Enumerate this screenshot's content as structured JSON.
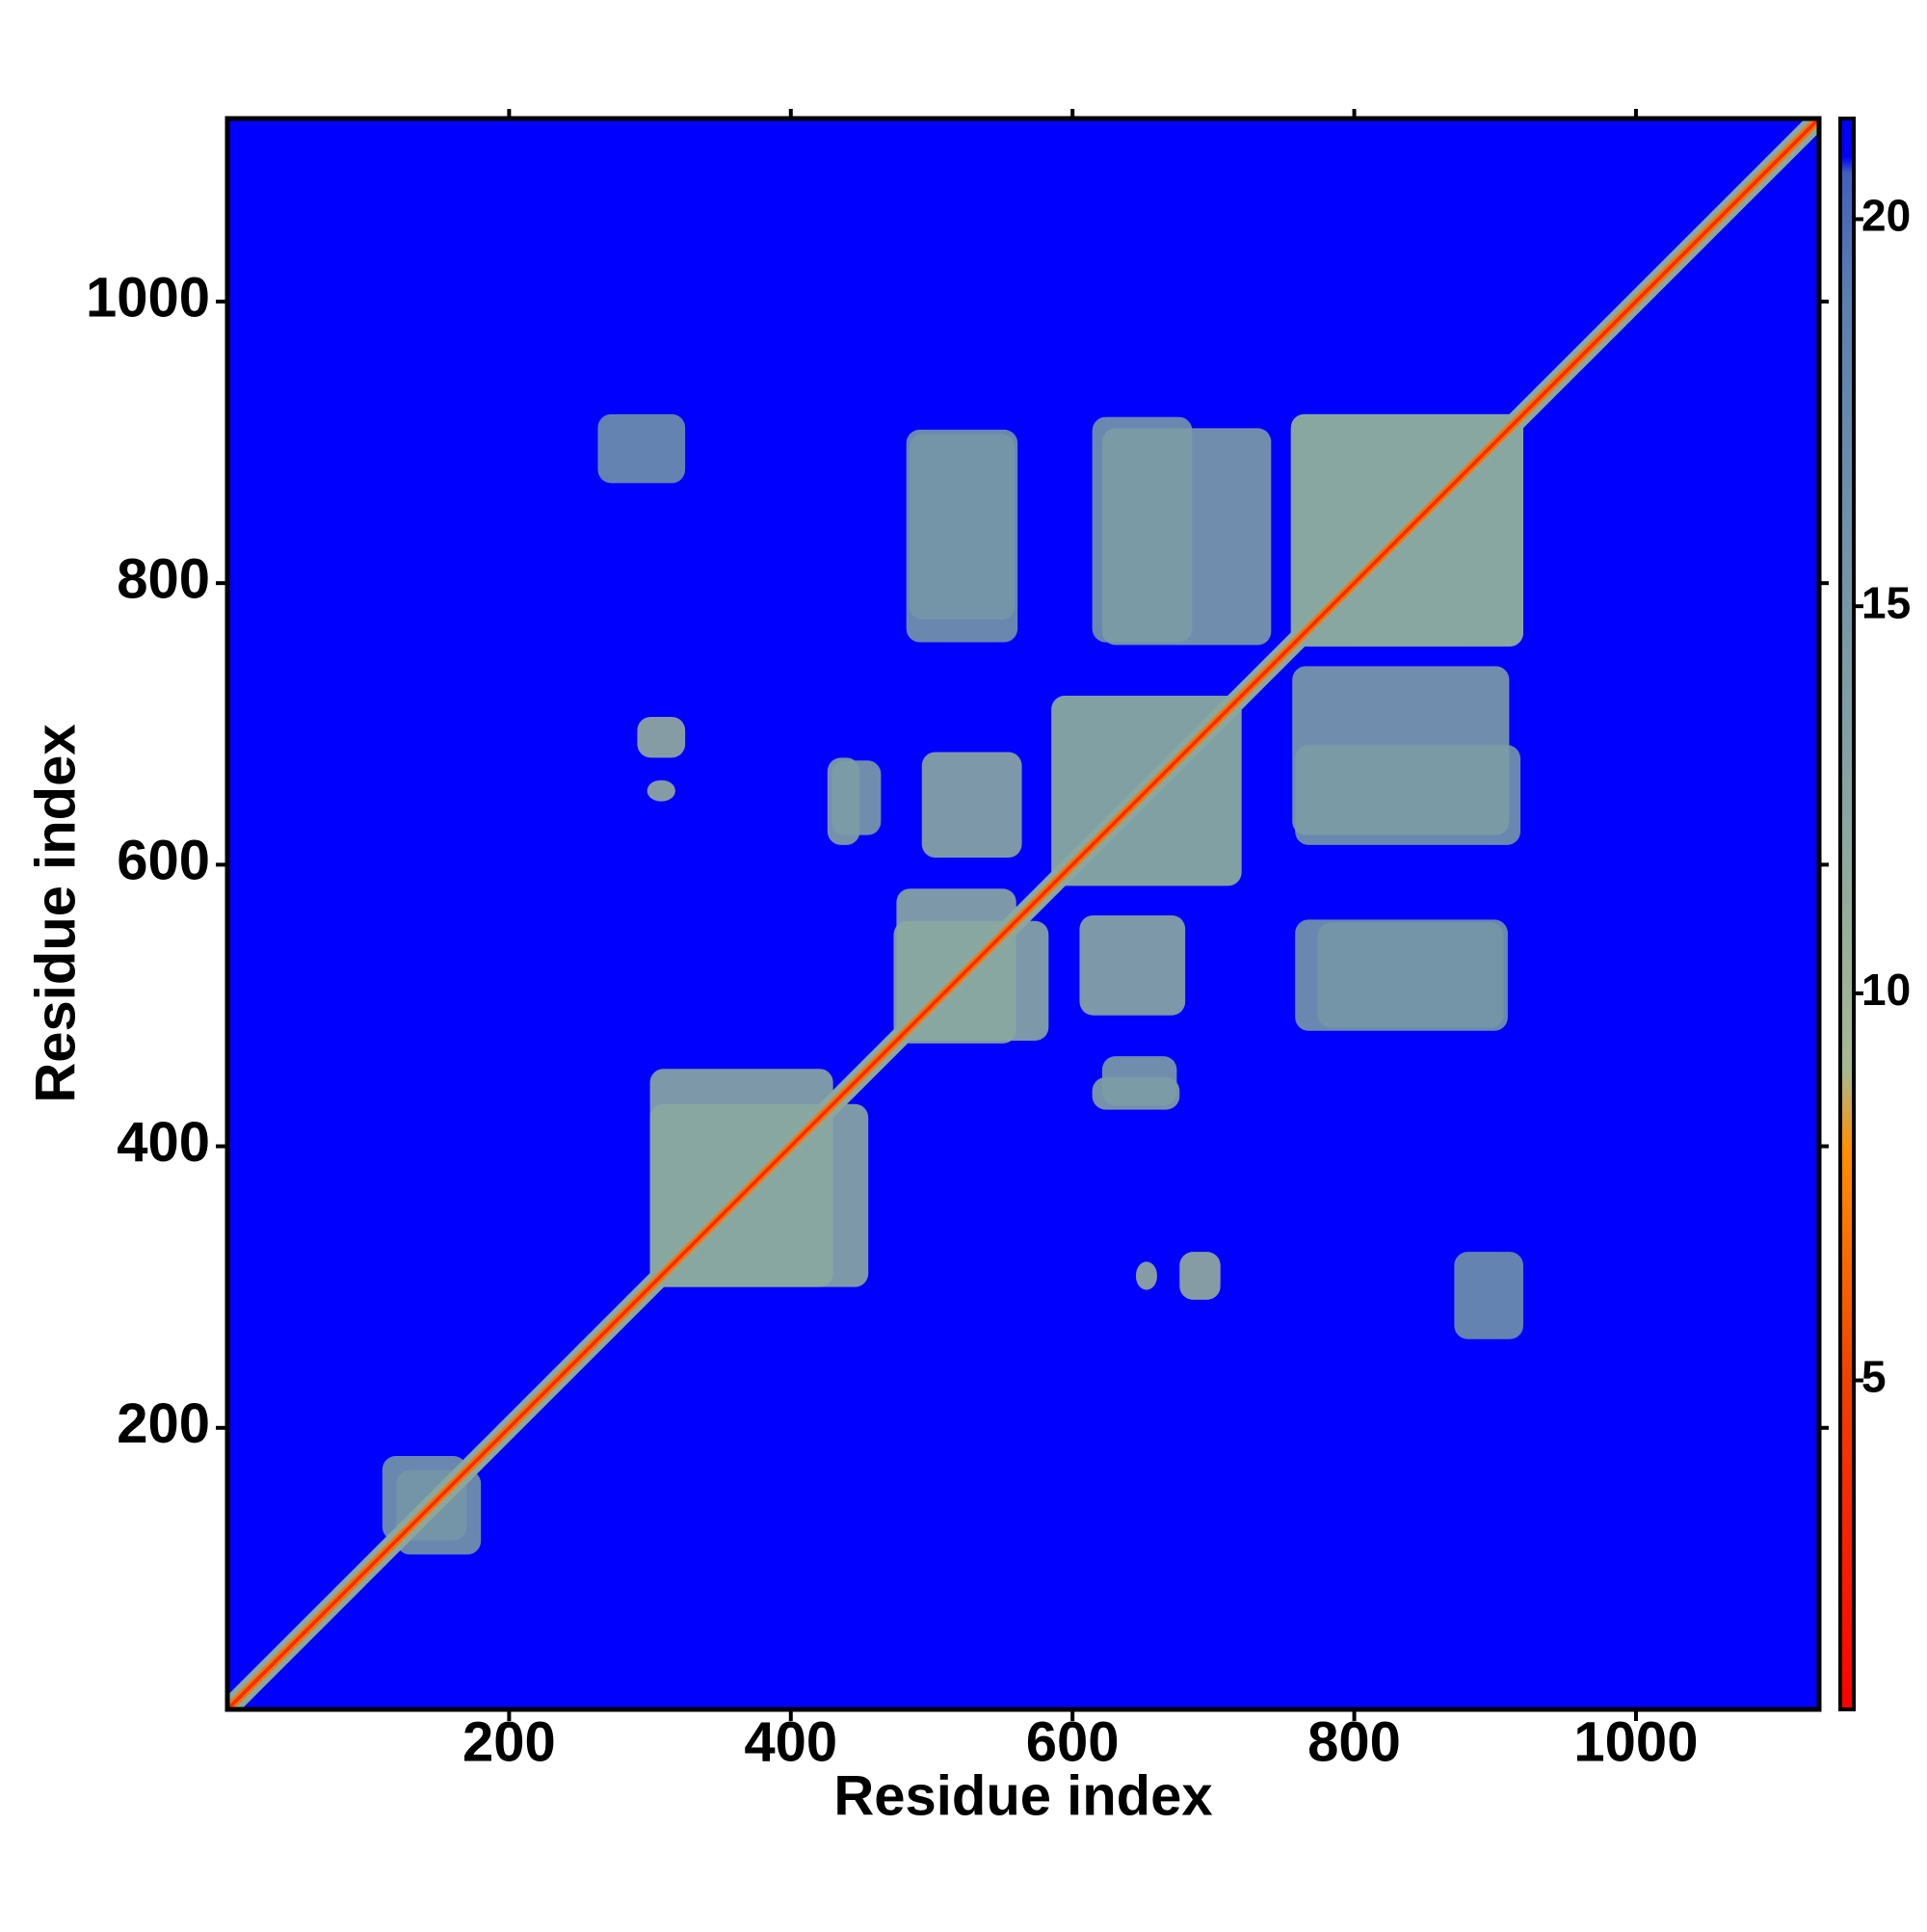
{
  "chart_data": {
    "type": "heatmap",
    "x_label": "Residue index",
    "y_label": "Residue index",
    "xlim": [
      0,
      1130
    ],
    "ylim": [
      0,
      1130
    ],
    "xticks": [
      200,
      400,
      600,
      800,
      1000
    ],
    "yticks": [
      200,
      400,
      600,
      800,
      1000
    ],
    "symmetric": true,
    "background_value": 21,
    "zlim": [
      0.75,
      21.3
    ],
    "zticks": [
      5,
      10,
      15,
      20
    ],
    "colorscale": [
      {
        "value": 0.75,
        "color": "#ff0000"
      },
      {
        "value": 5,
        "color": "#f04000"
      },
      {
        "value": 8,
        "color": "#ff9000"
      },
      {
        "value": 9,
        "color": "#a8b890"
      },
      {
        "value": 12,
        "color": "#8aa8a0"
      },
      {
        "value": 19,
        "color": "#5a7fb0"
      },
      {
        "value": 20.6,
        "color": "#4060c0"
      },
      {
        "value": 20.8,
        "color": "#0000ff"
      }
    ],
    "diagonal": [
      {
        "value": 12,
        "width": 14
      },
      {
        "value": 7,
        "width": 6
      },
      {
        "value": 3.8,
        "width": 2.5
      }
    ],
    "regions": [
      {
        "x": [
          475,
          560
        ],
        "y": [
          473,
          583
        ],
        "value": 12
      },
      {
        "x": [
          493,
          564
        ],
        "y": [
          605,
          680
        ],
        "value": 12
      },
      {
        "x": [
          755,
          920
        ],
        "y": [
          755,
          920
        ],
        "value": 12
      },
      {
        "x": [
          300,
          430
        ],
        "y": [
          300,
          455
        ],
        "value": 12
      },
      {
        "x": [
          291,
          325
        ],
        "y": [
          676,
          705
        ],
        "value": 11
      },
      {
        "x": [
          298,
          318
        ],
        "y": [
          645,
          660
        ],
        "value": 11
      },
      {
        "x": [
          758,
          909
        ],
        "y": [
          482,
          561
        ],
        "value": 15
      },
      {
        "x": [
          758,
          918
        ],
        "y": [
          614,
          685
        ],
        "value": 15
      },
      {
        "x": [
          484,
          559
        ],
        "y": [
          774,
          906
        ],
        "value": 15
      },
      {
        "x": [
          621,
          741
        ],
        "y": [
          756,
          910
        ],
        "value": 14
      },
      {
        "x": [
          426,
          449
        ],
        "y": [
          614,
          676
        ],
        "value": 13
      },
      {
        "x": [
          621,
          674
        ],
        "y": [
          429,
          464
        ],
        "value": 14
      },
      {
        "x": [
          263,
          325
        ],
        "y": [
          871,
          920
        ],
        "value": 16
      },
      {
        "x": [
          585,
          720
        ],
        "y": [
          585,
          720
        ],
        "value": 13
      },
      {
        "x": [
          120,
          180
        ],
        "y": [
          110,
          170
        ],
        "value": 15
      }
    ]
  }
}
